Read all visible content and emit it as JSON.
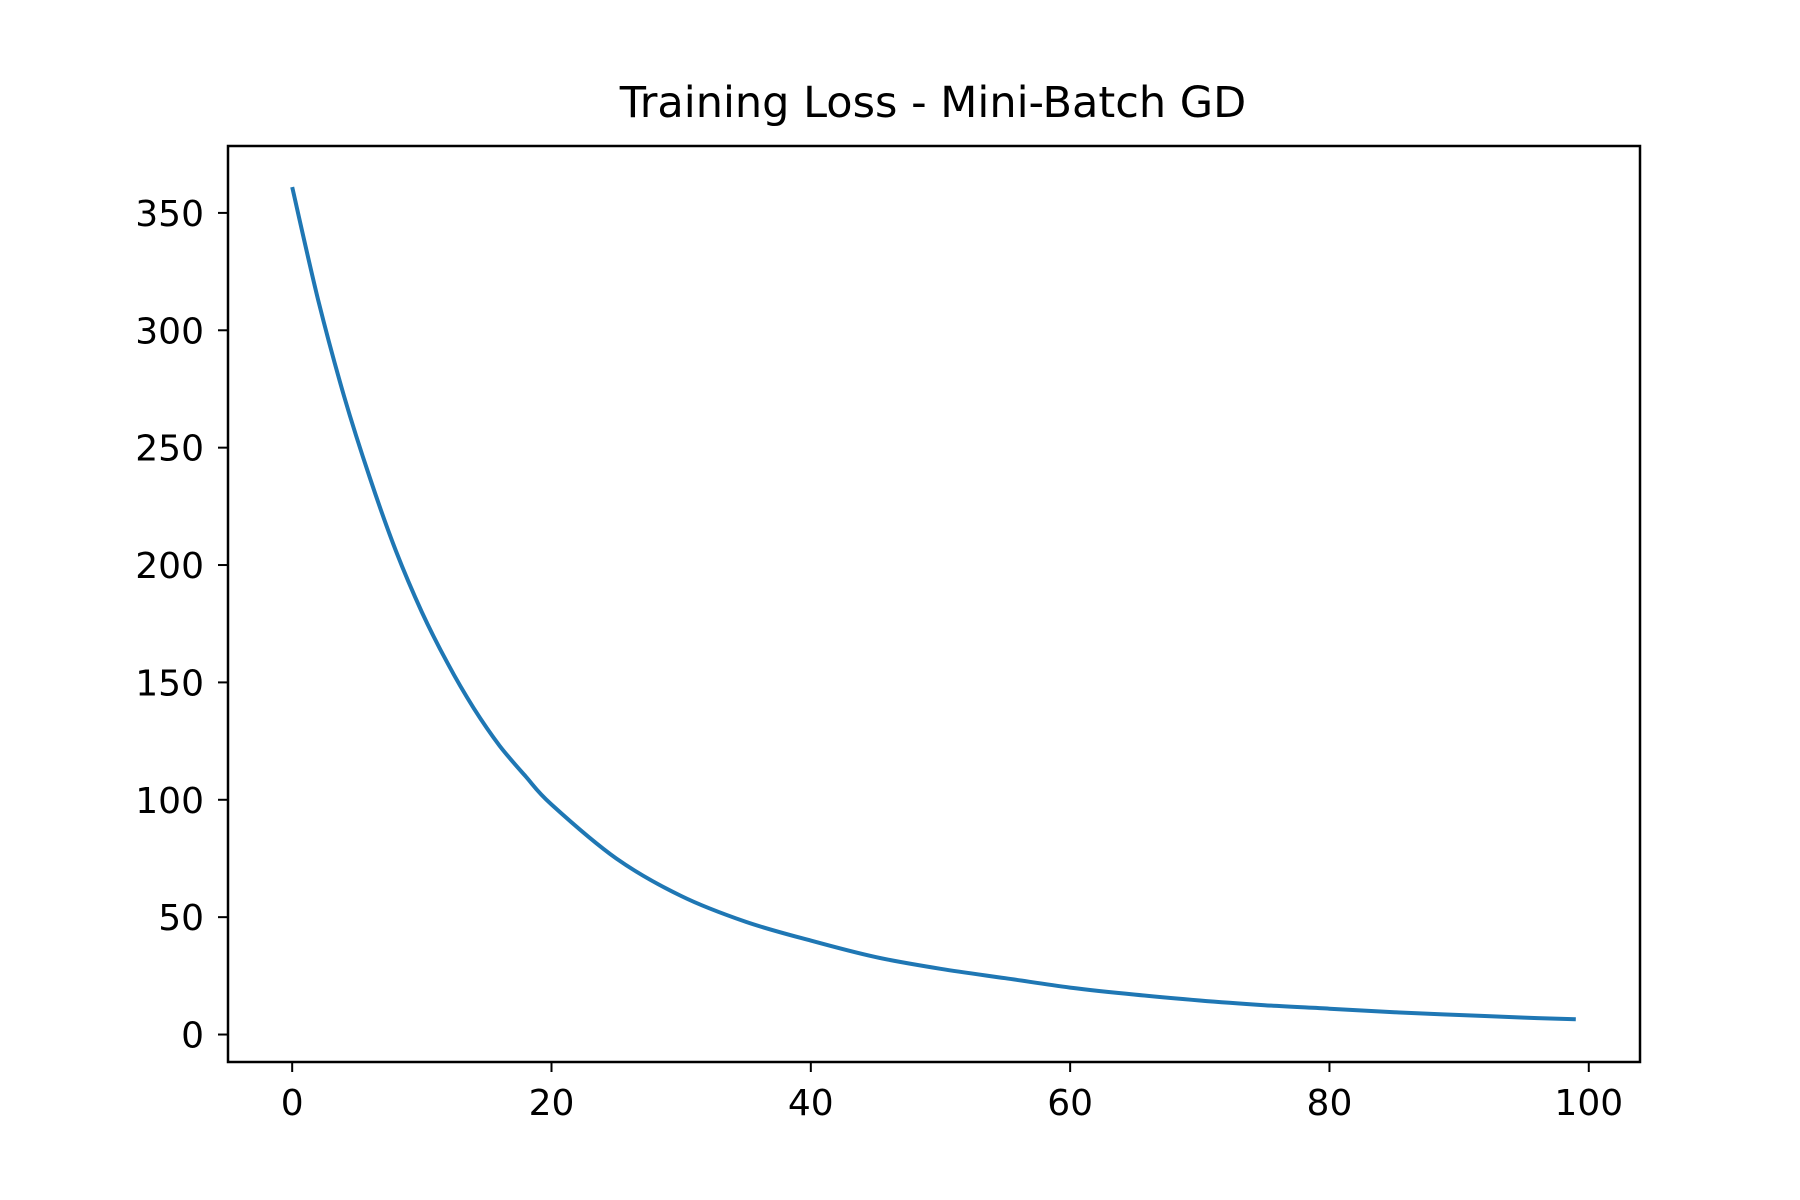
{
  "chart_data": {
    "type": "line",
    "title": "Training Loss - Mini-Batch GD",
    "xlabel": "",
    "ylabel": "",
    "xlim": [
      -4.95,
      103.95
    ],
    "ylim": [
      -11.7,
      378.5
    ],
    "x_ticks": [
      0,
      20,
      40,
      60,
      80,
      100
    ],
    "y_ticks": [
      0,
      50,
      100,
      150,
      200,
      250,
      300,
      350
    ],
    "x_tick_labels": [
      "0",
      "20",
      "40",
      "60",
      "80",
      "100"
    ],
    "y_tick_labels": [
      "0",
      "50",
      "100",
      "150",
      "200",
      "250",
      "300",
      "350"
    ],
    "grid": false,
    "legend": "none",
    "series": [
      {
        "color": "#1f77b4",
        "x": [
          0,
          2,
          4,
          6,
          8,
          10,
          12,
          14,
          16,
          18,
          20,
          25,
          30,
          35,
          40,
          45,
          50,
          55,
          60,
          65,
          70,
          75,
          80,
          85,
          90,
          95,
          99
        ],
        "values": [
          361,
          313,
          272,
          237,
          206,
          180,
          158,
          139,
          123,
          110,
          98,
          75,
          59,
          48,
          40,
          33,
          28,
          24,
          20,
          17,
          14.5,
          12.5,
          11,
          9.5,
          8.3,
          7.2,
          6.5
        ]
      }
    ]
  }
}
